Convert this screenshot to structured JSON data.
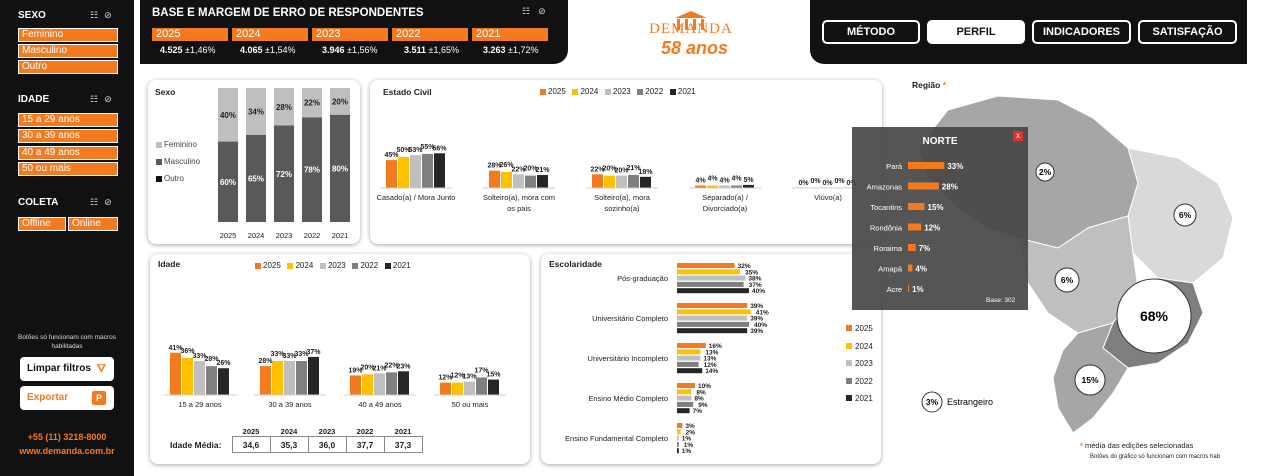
{
  "sidebar": {
    "sexo_title": "SEXO",
    "sexo_items": [
      "Feminino",
      "Masculino",
      "Outro"
    ],
    "idade_title": "IDADE",
    "idade_items": [
      "15 a 29 anos",
      "30 a 39 anos",
      "40 a 49 anos",
      "50 ou mais"
    ],
    "coleta_title": "COLETA",
    "coleta_items": [
      "Offline",
      "Online"
    ],
    "note": "Botões só funcionam com macros habilitadas",
    "clear_label": "Limpar filtros",
    "export_label": "Exportar",
    "phone": "+55 (11) 3218-8000",
    "site": "www.demanda.com.br"
  },
  "base": {
    "title": "BASE E MARGEM DE ERRO DE RESPONDENTES",
    "years": [
      {
        "year": "2025",
        "n": "4.525",
        "err": "±1,46%"
      },
      {
        "year": "2024",
        "n": "4.065",
        "err": "±1,54%"
      },
      {
        "year": "2023",
        "n": "3.946",
        "err": "±1,56%"
      },
      {
        "year": "2022",
        "n": "3.511",
        "err": "±1,65%"
      },
      {
        "year": "2021",
        "n": "3.263",
        "err": "±1,72%"
      }
    ]
  },
  "logo": {
    "name": "DEMANDA",
    "years": "58 anos"
  },
  "nav": {
    "metodo": "MÉTODO",
    "perfil": "PERFIL",
    "indicadores": "INDICADORES",
    "satisfacao": "SATISFAÇÃO"
  },
  "colors": {
    "orange": "#f47a20",
    "yellow": "#ffc000",
    "light_gray": "#bfbfbf",
    "gray": "#7f7f7f",
    "dark": "#262626"
  },
  "legend_years": [
    "2025",
    "2024",
    "2023",
    "2022",
    "2021"
  ],
  "sexo": {
    "title": "Sexo",
    "legend": [
      "Feminino",
      "Masculino",
      "Outro"
    ],
    "categories": [
      "2025",
      "2024",
      "2023",
      "2022",
      "2021"
    ],
    "feminino": [
      40,
      34,
      28,
      22,
      20
    ],
    "masculino": [
      60,
      65,
      72,
      78,
      80
    ],
    "fem_labels": [
      "40%",
      "34%",
      "28%",
      "22%",
      "20%"
    ],
    "masc_labels": [
      "60%",
      "65%",
      "72%",
      "78%",
      "80%"
    ]
  },
  "estado_civil": {
    "title": "Estado Civil",
    "categories": [
      "Casado(a) / Mora Junto",
      "Solteiro(a), mora com os pais",
      "Solteiro(a), mora sozinho(a)",
      "Separado(a) / Divorciado(a)",
      "Viúvo(a)"
    ],
    "values": [
      [
        45,
        50,
        53,
        55,
        56
      ],
      [
        28,
        26,
        22,
        20,
        21
      ],
      [
        22,
        20,
        20,
        21,
        18
      ],
      [
        4,
        4,
        4,
        4,
        5
      ],
      [
        0,
        0,
        0,
        0,
        0
      ]
    ],
    "labels": [
      [
        "45%",
        "50%",
        "53%",
        "55%",
        "56%"
      ],
      [
        "28%",
        "26%",
        "22%",
        "20%",
        "21%"
      ],
      [
        "22%",
        "20%",
        "20%",
        "21%",
        "18%"
      ],
      [
        "4%",
        "4%",
        "4%",
        "4%",
        "5%"
      ],
      [
        "0%",
        "0%",
        "0%",
        "0%",
        "0%"
      ]
    ]
  },
  "idade": {
    "title": "Idade",
    "categories": [
      "15 a 29 anos",
      "30 a 39 anos",
      "40 a 49 anos",
      "50 ou mais"
    ],
    "values": [
      [
        41,
        36,
        33,
        28,
        26
      ],
      [
        28,
        33,
        33,
        33,
        37
      ],
      [
        19,
        20,
        21,
        22,
        23
      ],
      [
        12,
        12,
        13,
        17,
        15
      ]
    ],
    "labels": [
      [
        "41%",
        "36%",
        "33%",
        "28%",
        "26%"
      ],
      [
        "28%",
        "33%",
        "33%",
        "33%",
        "37%"
      ],
      [
        "19%",
        "20%",
        "21%",
        "22%",
        "23%"
      ],
      [
        "12%",
        "12%",
        "13%",
        "17%",
        "15%"
      ]
    ],
    "media_label": "Idade Média:",
    "media_years": [
      "2025",
      "2024",
      "2023",
      "2022",
      "2021"
    ],
    "media_values": [
      "34,6",
      "35,3",
      "36,0",
      "37,7",
      "37,3"
    ]
  },
  "escolaridade": {
    "title": "Escolaridade",
    "categories": [
      "Pós-graduação",
      "Universitário Completo",
      "Universitário Incompleto",
      "Ensino Médio Completo",
      "Ensino Fundamental Completo"
    ],
    "values": [
      [
        32,
        35,
        38,
        37,
        40
      ],
      [
        39,
        41,
        39,
        40,
        39
      ],
      [
        16,
        13,
        13,
        12,
        14
      ],
      [
        10,
        8,
        8,
        9,
        7
      ],
      [
        3,
        2,
        1,
        1,
        1
      ]
    ],
    "labels": [
      [
        "32%",
        "35%",
        "38%",
        "37%",
        "40%"
      ],
      [
        "39%",
        "41%",
        "39%",
        "40%",
        "39%"
      ],
      [
        "16%",
        "13%",
        "13%",
        "12%",
        "14%"
      ],
      [
        "10%",
        "8%",
        "8%",
        "9%",
        "7%"
      ],
      [
        "3%",
        "2%",
        "1%",
        "1%",
        "1%"
      ]
    ]
  },
  "regiao": {
    "title": "Região",
    "asterisk": "*",
    "norte_pct": "2%",
    "nordeste_pct": "6%",
    "centro_pct": "6%",
    "sudeste_pct": "68%",
    "sul_pct": "15%",
    "estrangeiro_pct": "3%",
    "estrangeiro_label": "Estrangeiro",
    "note1": "média das edições selecionadas",
    "note2": "Botões do gráfico só funcionam com macros hab"
  },
  "norte_popup": {
    "title": "NORTE",
    "close": "x",
    "states": [
      "Pará",
      "Amazonas",
      "Tocantins",
      "Rondônia",
      "Roraima",
      "Amapá",
      "Acre"
    ],
    "values": [
      33,
      28,
      15,
      12,
      7,
      4,
      1
    ],
    "labels": [
      "33%",
      "28%",
      "15%",
      "12%",
      "7%",
      "4%",
      "1%"
    ],
    "base": "Base: 302"
  }
}
